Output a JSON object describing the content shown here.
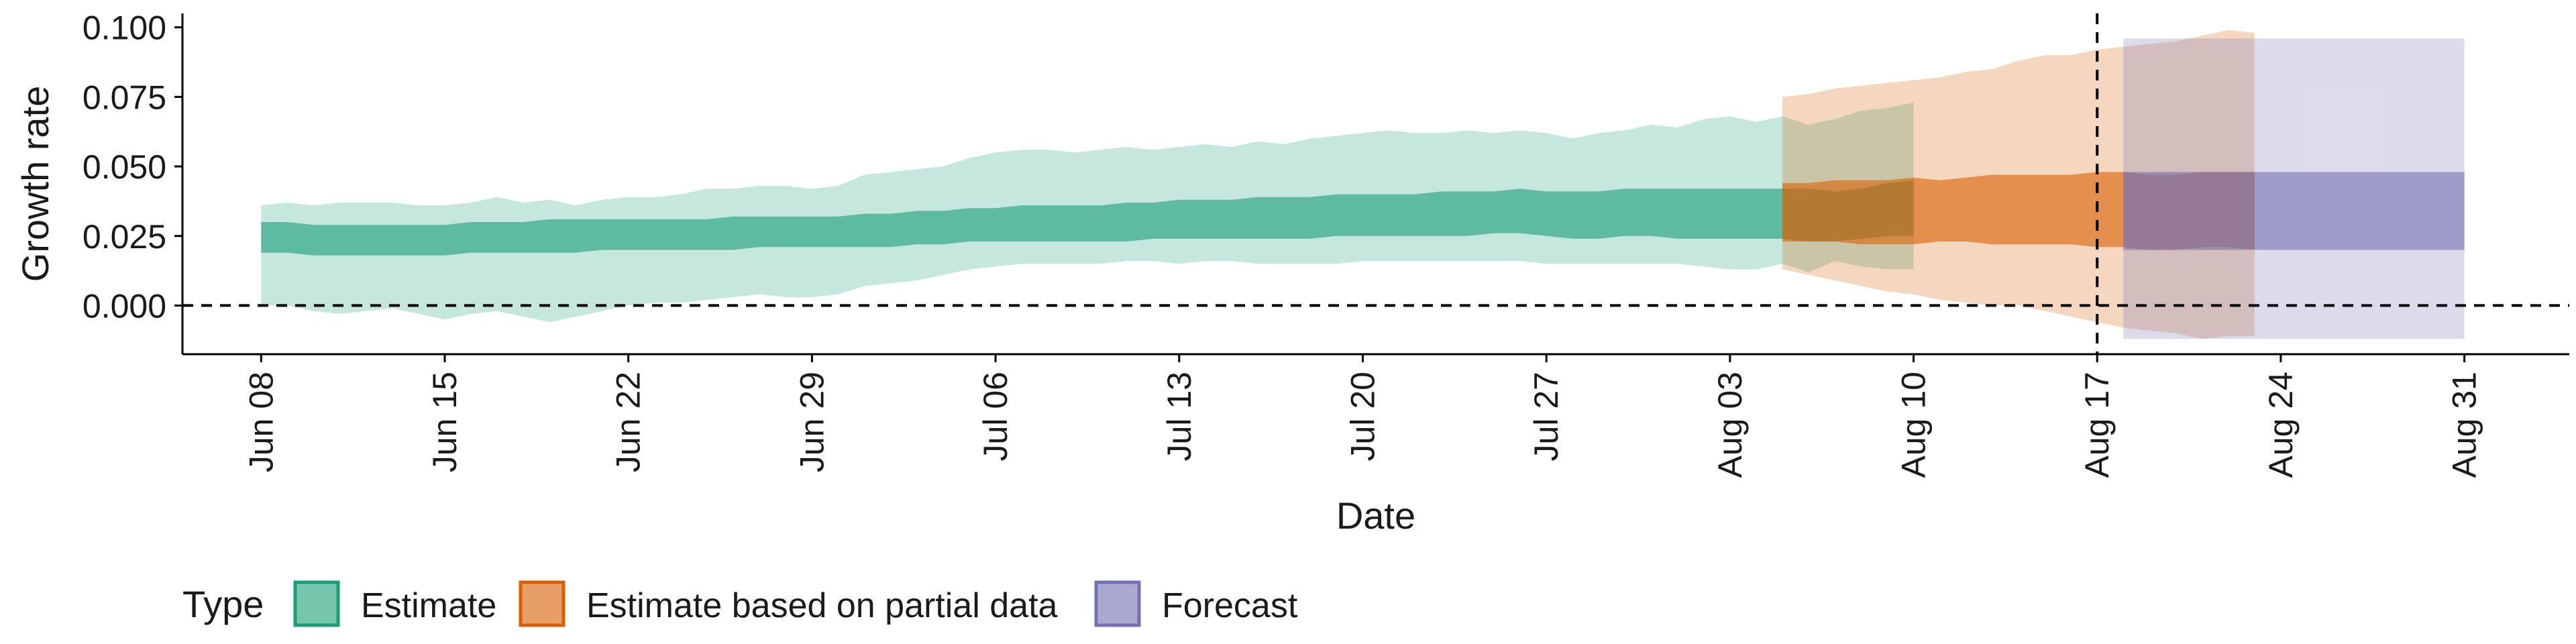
{
  "chart_data": {
    "type": "area",
    "xlabel": "Date",
    "ylabel": "Growth rate",
    "ylim": [
      -0.0175,
      0.105
    ],
    "yticks": [
      0.0,
      0.025,
      0.05,
      0.075,
      0.1
    ],
    "ytick_labels": [
      "0.000",
      "0.025",
      "0.050",
      "0.075",
      "0.100"
    ],
    "xlim": [
      "2020-06-05",
      "2020-09-04"
    ],
    "xticks": [
      "2020-06-08",
      "2020-06-15",
      "2020-06-22",
      "2020-06-29",
      "2020-07-06",
      "2020-07-13",
      "2020-07-20",
      "2020-07-27",
      "2020-08-03",
      "2020-08-10",
      "2020-08-17",
      "2020-08-24",
      "2020-08-31"
    ],
    "xtick_labels": [
      "Jun 08",
      "Jun 15",
      "Jun 22",
      "Jun 29",
      "Jul 06",
      "Jul 13",
      "Jul 20",
      "Jul 27",
      "Aug 03",
      "Aug 10",
      "Aug 17",
      "Aug 24",
      "Aug 31"
    ],
    "hline": 0,
    "vline": "2020-08-17",
    "grid": false,
    "legend": {
      "position": "bottom-left",
      "title": "Type",
      "entries": [
        "Estimate",
        "Estimate based on partial data",
        "Forecast"
      ]
    },
    "colors": {
      "Estimate": "#1b9e77",
      "Estimate based on partial data": "#d95f02",
      "Forecast": "#7570b3"
    },
    "series": [
      {
        "name": "Estimate",
        "x_start": "2020-06-08",
        "outer_lower": [
          0.0,
          0.0,
          -0.002,
          -0.003,
          -0.002,
          -0.001,
          -0.003,
          -0.005,
          -0.003,
          -0.002,
          -0.004,
          -0.006,
          -0.004,
          -0.002,
          0.0,
          0.001,
          0.001,
          0.002,
          0.003,
          0.004,
          0.003,
          0.003,
          0.004,
          0.007,
          0.008,
          0.009,
          0.011,
          0.013,
          0.014,
          0.015,
          0.015,
          0.015,
          0.015,
          0.016,
          0.016,
          0.015,
          0.016,
          0.016,
          0.015,
          0.015,
          0.015,
          0.015,
          0.016,
          0.016,
          0.016,
          0.016,
          0.016,
          0.016,
          0.016,
          0.015,
          0.015,
          0.015,
          0.015,
          0.015,
          0.015,
          0.014,
          0.013,
          0.013,
          0.015,
          0.012,
          0.016,
          0.014,
          0.013,
          0.013
        ],
        "inner_lower": [
          0.019,
          0.019,
          0.018,
          0.018,
          0.018,
          0.018,
          0.018,
          0.018,
          0.019,
          0.019,
          0.019,
          0.019,
          0.019,
          0.02,
          0.02,
          0.02,
          0.02,
          0.02,
          0.02,
          0.021,
          0.021,
          0.021,
          0.021,
          0.021,
          0.021,
          0.022,
          0.022,
          0.023,
          0.023,
          0.023,
          0.023,
          0.023,
          0.023,
          0.023,
          0.024,
          0.024,
          0.024,
          0.024,
          0.024,
          0.024,
          0.024,
          0.025,
          0.025,
          0.025,
          0.025,
          0.025,
          0.025,
          0.026,
          0.026,
          0.025,
          0.024,
          0.024,
          0.025,
          0.025,
          0.024,
          0.024,
          0.024,
          0.024,
          0.024,
          0.023,
          0.023,
          0.024,
          0.025,
          0.025
        ],
        "inner_upper": [
          0.03,
          0.03,
          0.029,
          0.029,
          0.029,
          0.029,
          0.029,
          0.029,
          0.03,
          0.03,
          0.03,
          0.031,
          0.031,
          0.031,
          0.031,
          0.031,
          0.031,
          0.031,
          0.032,
          0.032,
          0.032,
          0.032,
          0.032,
          0.033,
          0.033,
          0.034,
          0.034,
          0.035,
          0.035,
          0.036,
          0.036,
          0.036,
          0.036,
          0.037,
          0.037,
          0.038,
          0.038,
          0.038,
          0.039,
          0.039,
          0.039,
          0.04,
          0.04,
          0.04,
          0.04,
          0.041,
          0.041,
          0.041,
          0.042,
          0.041,
          0.041,
          0.041,
          0.042,
          0.042,
          0.042,
          0.042,
          0.042,
          0.042,
          0.042,
          0.042,
          0.041,
          0.042,
          0.044,
          0.045
        ],
        "outer_upper": [
          0.036,
          0.037,
          0.036,
          0.037,
          0.037,
          0.037,
          0.036,
          0.036,
          0.037,
          0.039,
          0.037,
          0.038,
          0.036,
          0.038,
          0.039,
          0.039,
          0.04,
          0.042,
          0.042,
          0.043,
          0.043,
          0.042,
          0.043,
          0.047,
          0.048,
          0.049,
          0.05,
          0.053,
          0.055,
          0.056,
          0.056,
          0.055,
          0.056,
          0.057,
          0.056,
          0.057,
          0.058,
          0.057,
          0.059,
          0.058,
          0.06,
          0.061,
          0.062,
          0.063,
          0.062,
          0.062,
          0.063,
          0.062,
          0.063,
          0.062,
          0.06,
          0.062,
          0.063,
          0.065,
          0.064,
          0.067,
          0.068,
          0.066,
          0.068,
          0.065,
          0.067,
          0.07,
          0.071,
          0.073
        ]
      },
      {
        "name": "Estimate based on partial data",
        "x_start": "2020-08-05",
        "outer_lower": [
          0.013,
          0.011,
          0.009,
          0.007,
          0.005,
          0.004,
          0.002,
          0.001,
          0.0,
          0.0,
          -0.002,
          -0.004,
          -0.006,
          -0.008,
          -0.009,
          -0.01,
          -0.012,
          -0.011,
          -0.011
        ],
        "inner_lower": [
          0.023,
          0.023,
          0.023,
          0.022,
          0.022,
          0.022,
          0.023,
          0.023,
          0.022,
          0.022,
          0.022,
          0.022,
          0.021,
          0.021,
          0.02,
          0.02,
          0.021,
          0.021,
          0.02
        ],
        "inner_upper": [
          0.044,
          0.044,
          0.045,
          0.045,
          0.045,
          0.046,
          0.045,
          0.046,
          0.047,
          0.047,
          0.047,
          0.047,
          0.048,
          0.048,
          0.047,
          0.047,
          0.048,
          0.048,
          0.048
        ],
        "outer_upper": [
          0.075,
          0.076,
          0.078,
          0.079,
          0.08,
          0.081,
          0.082,
          0.084,
          0.085,
          0.088,
          0.09,
          0.09,
          0.092,
          0.093,
          0.094,
          0.095,
          0.097,
          0.099,
          0.098
        ]
      },
      {
        "name": "Forecast",
        "x_start": "2020-08-18",
        "x_end": "2020-08-31",
        "outer_lower": -0.012,
        "inner_lower": 0.02,
        "inner_upper": 0.048,
        "outer_upper": 0.096
      }
    ]
  }
}
